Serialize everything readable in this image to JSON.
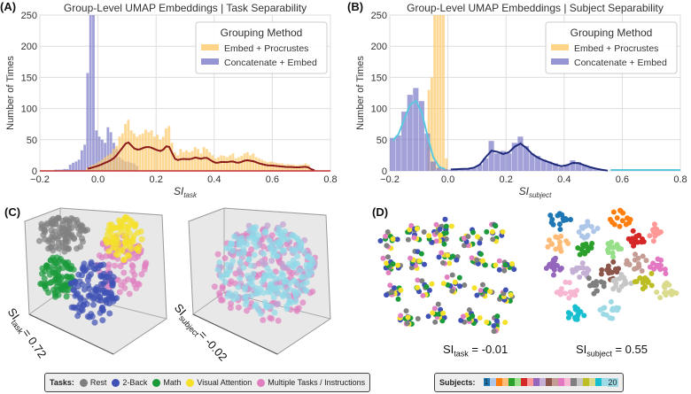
{
  "chart_data": [
    {
      "panel": "(A)",
      "type": "bar",
      "title": "Group-Level UMAP Embeddings | Task Separability",
      "xlabel": "SI",
      "xlabel_sub": "task",
      "ylabel": "Number of Times",
      "xlim": [
        -0.2,
        0.8
      ],
      "ylim": [
        0,
        250
      ],
      "xticks": [
        "-0.2",
        "0.0",
        "0.2",
        "0.4",
        "0.6",
        "0.8"
      ],
      "yticks": [
        "0",
        "50",
        "100",
        "150",
        "200",
        "250"
      ],
      "grid": true,
      "legend": {
        "title": "Grouping Method",
        "position": "top-right",
        "entries": [
          "Embed + Procrustes",
          "Concatenate + Embed"
        ]
      },
      "series": [
        {
          "name": "Embed + Procrustes",
          "color": "#fdc96a",
          "line_color": "#8b1a1a",
          "start": -0.04,
          "step": 0.01,
          "counts": [
            5,
            8,
            10,
            12,
            15,
            18,
            22,
            25,
            28,
            35,
            40,
            55,
            60,
            75,
            82,
            65,
            60,
            55,
            58,
            60,
            66,
            62,
            65,
            55,
            58,
            50,
            55,
            68,
            72,
            45,
            30,
            25,
            35,
            30,
            33,
            30,
            32,
            38,
            35,
            28,
            38,
            35,
            30,
            25,
            20,
            22,
            25,
            24,
            22,
            25,
            28,
            20,
            22,
            24,
            28,
            30,
            25,
            28,
            22,
            20,
            18,
            16,
            14,
            15,
            14,
            13,
            12,
            12,
            10,
            11,
            10,
            10,
            9,
            10,
            10,
            12,
            10,
            3,
            1
          ]
        },
        {
          "name": "Concatenate + Embed",
          "color": "#7b7bc8",
          "start": -0.15,
          "step": 0.01,
          "counts": [
            2,
            2,
            2,
            3,
            3,
            10,
            13,
            15,
            18,
            33,
            42,
            157,
            250,
            250,
            65,
            55,
            50,
            45,
            70,
            62,
            45,
            35,
            22,
            18,
            15,
            15,
            13,
            12,
            8
          ]
        }
      ]
    },
    {
      "panel": "(B)",
      "type": "bar",
      "title": "Group-Level UMAP Embeddings | Subject Separability",
      "xlabel": "SI",
      "xlabel_sub": "subject",
      "ylabel": "Number of Times",
      "xlim": [
        -0.2,
        0.8
      ],
      "ylim": [
        0,
        250
      ],
      "xticks": [
        "-0.2",
        "0.0",
        "0.2",
        "0.4",
        "0.6",
        "0.8"
      ],
      "yticks": [
        "0",
        "50",
        "100",
        "150",
        "200",
        "250"
      ],
      "grid": true,
      "legend": {
        "title": "Grouping Method",
        "position": "top-right",
        "entries": [
          "Embed + Procrustes",
          "Concatenate + Embed"
        ]
      },
      "series": [
        {
          "name": "Embed + Procrustes",
          "color": "#fdc96a",
          "line_color": "#5bc8e0",
          "start": -0.07,
          "step": 0.01,
          "counts": [
            130,
            150,
            250,
            250,
            250,
            250,
            20
          ]
        },
        {
          "name": "Concatenate + Embed",
          "color": "#7b7bc8",
          "line_color": "#1f2a7a",
          "start": -0.2,
          "step": 0.02,
          "counts": [
            53,
            57,
            95,
            122,
            133,
            112,
            60,
            15,
            5,
            3,
            2,
            3,
            4,
            3,
            5,
            10,
            20,
            48,
            28,
            32,
            28,
            45,
            55,
            40,
            28,
            24,
            18,
            15,
            12,
            6,
            9,
            17,
            14,
            10,
            6,
            4,
            2,
            0
          ]
        }
      ]
    }
  ],
  "panels": {
    "c": "(C)",
    "d": "(D)"
  },
  "si": {
    "c_left": {
      "base": "SI",
      "sub": "task",
      "val": "= 0.72"
    },
    "c_right": {
      "base": "SI",
      "sub": "subject",
      "val": "= -0.02"
    },
    "d_left": {
      "base": "SI",
      "sub": "task",
      "val": " = -0.01"
    },
    "d_right": {
      "base": "SI",
      "sub": "subject",
      "val": " = 0.55"
    }
  },
  "tasks_legend": {
    "label": "Tasks:",
    "items": [
      {
        "name": "Rest",
        "color": "#808080"
      },
      {
        "name": "2-Back",
        "color": "#3f51b5"
      },
      {
        "name": "Math",
        "color": "#1a9a3a"
      },
      {
        "name": "Visual Attention",
        "color": "#f5e12a"
      },
      {
        "name": "Multiple Tasks / Instructions",
        "color": "#e080c0"
      }
    ]
  },
  "subjects_legend": {
    "label": "Subjects:",
    "first": "1",
    "last": "20",
    "colors": [
      "#1f77b4",
      "#aec7e8",
      "#ff7f0e",
      "#ffbb78",
      "#2ca02c",
      "#98df8a",
      "#d62728",
      "#ff9896",
      "#9467bd",
      "#c5b0d5",
      "#8c564b",
      "#c49c94",
      "#e377c2",
      "#f7b6d2",
      "#7f7f7f",
      "#c7c7c7",
      "#bcbd22",
      "#dbdb8d",
      "#17becf",
      "#9edae5"
    ]
  }
}
